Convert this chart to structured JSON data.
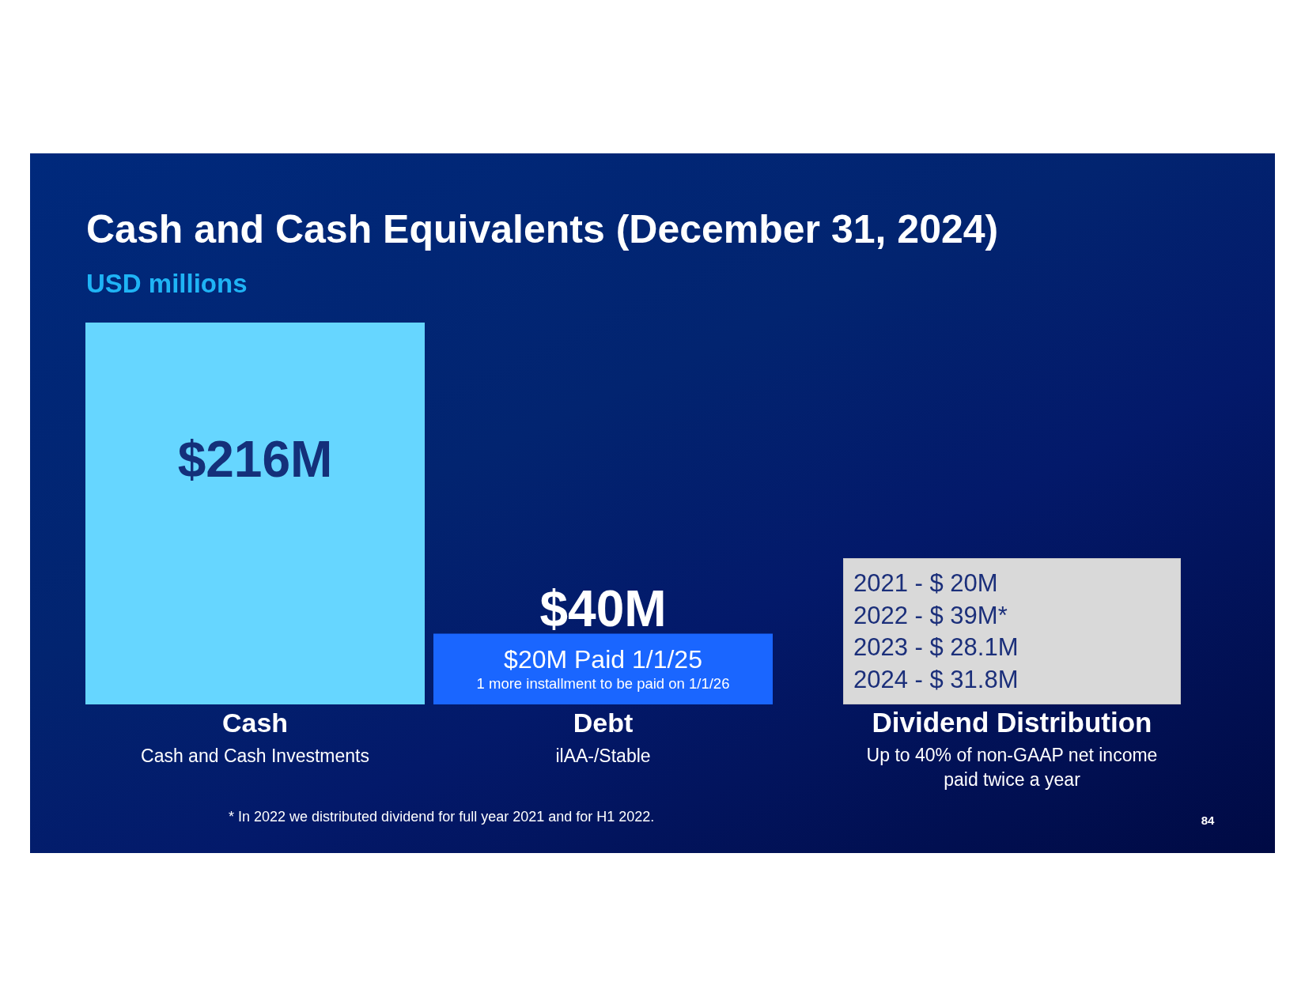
{
  "chart_data": [
    {
      "type": "bar",
      "title": "Cash and Cash Equivalents (December 31, 2024)",
      "subtitle": "USD millions",
      "categories": [
        "Cash",
        "Debt"
      ],
      "values": [
        216,
        40
      ],
      "colors": [
        "#66d6ff",
        "#1a66ff"
      ],
      "value_labels": [
        "$216M",
        "$40M"
      ],
      "tick_labels": "x",
      "annotations": [
        "Cash and Cash Investments",
        "$20M Paid 1/1/25",
        "1 more installment to be paid on 1/1/26",
        "ilAA-/Stable",
        "* In 2022 we distributed dividend for full year 2021 and for H1 2022.",
        "84"
      ]
    },
    {
      "type": "other",
      "title": "Dividend Distribution",
      "subtitle": "Up to 40% of non-GAAP net income paid twice a year",
      "annotations": [
        "2021 - $ 20M",
        "2022 - $ 39M*",
        "2023 - $ 28.1M",
        "2024 - $ 31.8M"
      ]
    }
  ]
}
